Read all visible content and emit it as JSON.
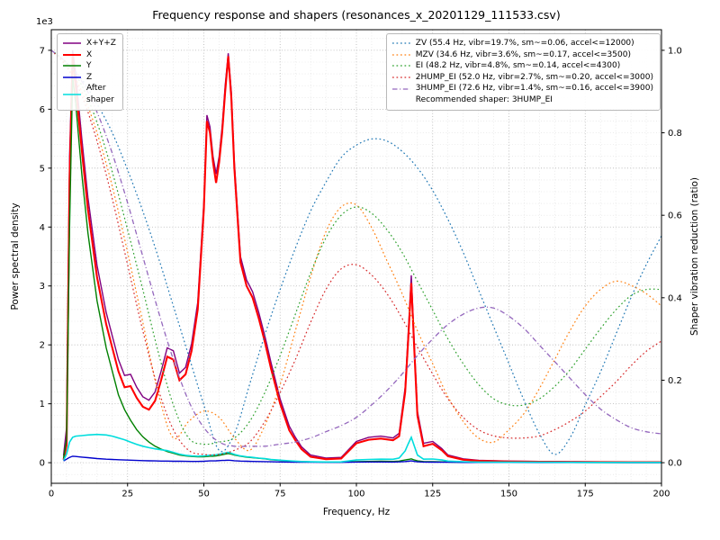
{
  "chart_data": {
    "type": "line",
    "title": "Frequency response and shapers (resonances_x_20201129_111533.csv)",
    "xlabel": "Frequency, Hz",
    "ylabel_left": "Power spectral density",
    "ylabel_right": "Shaper vibration reduction (ratio)",
    "xlim": [
      0,
      200
    ],
    "ylim_left": [
      -350,
      7350
    ],
    "ylim_right": [
      -0.05,
      1.05
    ],
    "grid": "both-major-and-minor",
    "recommended_shaper": "3HUMP_EI",
    "axes": {
      "x": {
        "ticks": [
          {
            "v": 0,
            "label": "0"
          },
          {
            "v": 25,
            "label": "25"
          },
          {
            "v": 50,
            "label": "50"
          },
          {
            "v": 75,
            "label": "75"
          },
          {
            "v": 100,
            "label": "100"
          },
          {
            "v": 125,
            "label": "125"
          },
          {
            "v": 150,
            "label": "150"
          },
          {
            "v": 175,
            "label": "175"
          },
          {
            "v": 200,
            "label": "200"
          }
        ],
        "minor_step": 5
      },
      "left": {
        "offset_label": "1e3",
        "ticks": [
          {
            "v": 0,
            "label": "0"
          },
          {
            "v": 1000,
            "label": "1"
          },
          {
            "v": 2000,
            "label": "2"
          },
          {
            "v": 3000,
            "label": "3"
          },
          {
            "v": 4000,
            "label": "4"
          },
          {
            "v": 5000,
            "label": "5"
          },
          {
            "v": 6000,
            "label": "6"
          },
          {
            "v": 7000,
            "label": "7"
          }
        ],
        "minor_step": 200
      },
      "right": {
        "ticks": [
          {
            "v": 0,
            "label": "0.0"
          },
          {
            "v": 0.2,
            "label": "0.2"
          },
          {
            "v": 0.4,
            "label": "0.4"
          },
          {
            "v": 0.6,
            "label": "0.6"
          },
          {
            "v": 0.8,
            "label": "0.8"
          },
          {
            "v": 1,
            "label": "1.0"
          }
        ]
      }
    },
    "x_psd": [
      4,
      5,
      6,
      7,
      8,
      10,
      12,
      15,
      18,
      20,
      22,
      24,
      26,
      28,
      30,
      32,
      34,
      36,
      38,
      40,
      42,
      44,
      46,
      48,
      50,
      51,
      52,
      53,
      54,
      55,
      56,
      57,
      58,
      59,
      60,
      62,
      64,
      66,
      68,
      70,
      72,
      75,
      78,
      80,
      82,
      85,
      90,
      95,
      100,
      104,
      108,
      112,
      114,
      116,
      117,
      118,
      119,
      120,
      122,
      125,
      128,
      130,
      135,
      140,
      150,
      160,
      170,
      180,
      190,
      200
    ],
    "psd_series": [
      {
        "name": "X+Y+Z",
        "color": "#800080",
        "dash": "solid",
        "width": 1.4,
        "vals": [
          120,
          600,
          5200,
          7000,
          6600,
          5500,
          4500,
          3350,
          2550,
          2150,
          1750,
          1480,
          1500,
          1280,
          1120,
          1060,
          1200,
          1550,
          1950,
          1900,
          1520,
          1620,
          2020,
          2720,
          4420,
          5900,
          5700,
          5200,
          4900,
          5200,
          5700,
          6400,
          6950,
          6300,
          5100,
          3500,
          3100,
          2900,
          2550,
          2150,
          1700,
          1080,
          620,
          430,
          270,
          130,
          80,
          90,
          360,
          430,
          450,
          420,
          500,
          1280,
          2200,
          3180,
          2000,
          870,
          330,
          360,
          240,
          130,
          65,
          40,
          28,
          22,
          16,
          13,
          10,
          10
        ]
      },
      {
        "name": "X",
        "color": "#ff0000",
        "dash": "solid",
        "width": 2.1,
        "vals": [
          50,
          300,
          4800,
          6900,
          6400,
          5300,
          4300,
          3150,
          2350,
          1950,
          1550,
          1280,
          1300,
          1100,
          950,
          900,
          1050,
          1400,
          1800,
          1750,
          1400,
          1500,
          1900,
          2600,
          4300,
          5800,
          5600,
          5100,
          4750,
          5100,
          5600,
          6300,
          6900,
          6200,
          5000,
          3400,
          3000,
          2800,
          2450,
          2050,
          1600,
          1000,
          550,
          380,
          230,
          100,
          60,
          70,
          330,
          390,
          410,
          380,
          450,
          1200,
          2100,
          3050,
          1900,
          800,
          280,
          320,
          210,
          110,
          50,
          30,
          20,
          15,
          12,
          10,
          8,
          8
        ]
      },
      {
        "name": "Y",
        "color": "#008000",
        "dash": "solid",
        "width": 1.4,
        "vals": [
          80,
          400,
          4000,
          6550,
          6100,
          4900,
          3900,
          2750,
          1950,
          1550,
          1150,
          900,
          720,
          560,
          440,
          350,
          280,
          230,
          190,
          160,
          130,
          115,
          105,
          100,
          100,
          105,
          110,
          110,
          115,
          125,
          135,
          145,
          155,
          145,
          130,
          110,
          95,
          85,
          75,
          65,
          50,
          38,
          28,
          22,
          18,
          14,
          10,
          10,
          18,
          22,
          24,
          22,
          28,
          45,
          55,
          65,
          45,
          30,
          20,
          16,
          13,
          10,
          8,
          6,
          5,
          4,
          4,
          3,
          3,
          3
        ]
      },
      {
        "name": "Z",
        "color": "#0000cd",
        "dash": "solid",
        "width": 1.4,
        "vals": [
          30,
          60,
          90,
          110,
          105,
          95,
          85,
          70,
          60,
          55,
          50,
          45,
          42,
          38,
          35,
          32,
          30,
          28,
          27,
          25,
          24,
          23,
          22,
          22,
          25,
          28,
          30,
          30,
          32,
          35,
          38,
          40,
          42,
          38,
          33,
          28,
          25,
          22,
          20,
          18,
          15,
          12,
          10,
          9,
          8,
          7,
          6,
          6,
          10,
          12,
          12,
          11,
          13,
          20,
          25,
          30,
          22,
          15,
          10,
          9,
          8,
          7,
          5,
          4,
          4,
          3,
          3,
          3,
          2,
          2
        ]
      },
      {
        "name": "After shaper",
        "color": "#00dddd",
        "dash": "solid",
        "width": 1.6,
        "vals": [
          40,
          150,
          350,
          430,
          450,
          460,
          470,
          480,
          470,
          450,
          420,
          390,
          350,
          310,
          280,
          255,
          235,
          220,
          205,
          175,
          145,
          125,
          115,
          110,
          115,
          120,
          125,
          130,
          135,
          145,
          155,
          165,
          175,
          160,
          140,
          115,
          100,
          90,
          78,
          68,
          55,
          42,
          32,
          26,
          20,
          15,
          12,
          14,
          45,
          55,
          60,
          58,
          80,
          200,
          320,
          430,
          280,
          130,
          60,
          62,
          45,
          28,
          16,
          10,
          8,
          7,
          6,
          5,
          5,
          5
        ]
      }
    ],
    "x_shapers": [
      0,
      5,
      10,
      15,
      20,
      25,
      30,
      35,
      40,
      45,
      50,
      55,
      60,
      65,
      70,
      75,
      80,
      85,
      90,
      95,
      100,
      105,
      110,
      115,
      120,
      125,
      130,
      135,
      140,
      145,
      150,
      155,
      160,
      165,
      170,
      175,
      180,
      185,
      190,
      195,
      200
    ],
    "shaper_series": [
      {
        "name": "ZV",
        "color": "#1f77b4",
        "dash": "dotted",
        "width": 1.2,
        "vals": [
          1.0,
          0.97,
          0.93,
          0.87,
          0.8,
          0.71,
          0.61,
          0.5,
          0.38,
          0.26,
          0.14,
          0.03,
          0.07,
          0.19,
          0.31,
          0.42,
          0.52,
          0.61,
          0.68,
          0.74,
          0.77,
          0.785,
          0.78,
          0.755,
          0.715,
          0.66,
          0.59,
          0.51,
          0.42,
          0.33,
          0.24,
          0.15,
          0.07,
          0.02,
          0.06,
          0.14,
          0.22,
          0.31,
          0.4,
          0.48,
          0.55
        ]
      },
      {
        "name": "MZV",
        "color": "#ff7f0e",
        "dash": "dotted",
        "width": 1.2,
        "vals": [
          1.0,
          0.965,
          0.9,
          0.8,
          0.67,
          0.51,
          0.34,
          0.17,
          0.06,
          0.1,
          0.125,
          0.11,
          0.06,
          0.03,
          0.09,
          0.19,
          0.32,
          0.45,
          0.56,
          0.62,
          0.625,
          0.57,
          0.49,
          0.41,
          0.32,
          0.24,
          0.16,
          0.1,
          0.06,
          0.05,
          0.08,
          0.12,
          0.18,
          0.25,
          0.32,
          0.38,
          0.42,
          0.44,
          0.43,
          0.41,
          0.38
        ]
      },
      {
        "name": "EI",
        "color": "#2ca02c",
        "dash": "dotted",
        "width": 1.2,
        "vals": [
          1.0,
          0.97,
          0.915,
          0.825,
          0.705,
          0.565,
          0.42,
          0.27,
          0.14,
          0.06,
          0.045,
          0.05,
          0.06,
          0.1,
          0.17,
          0.26,
          0.36,
          0.46,
          0.545,
          0.6,
          0.62,
          0.605,
          0.565,
          0.51,
          0.44,
          0.37,
          0.3,
          0.24,
          0.19,
          0.155,
          0.14,
          0.14,
          0.155,
          0.185,
          0.225,
          0.275,
          0.325,
          0.37,
          0.405,
          0.42,
          0.42
        ]
      },
      {
        "name": "2HUMP_EI",
        "color": "#d62728",
        "dash": "dotted",
        "width": 1.2,
        "vals": [
          1.0,
          0.96,
          0.89,
          0.78,
          0.64,
          0.48,
          0.32,
          0.18,
          0.08,
          0.03,
          0.02,
          0.02,
          0.03,
          0.05,
          0.1,
          0.17,
          0.25,
          0.34,
          0.42,
          0.47,
          0.48,
          0.455,
          0.41,
          0.35,
          0.28,
          0.215,
          0.155,
          0.11,
          0.08,
          0.065,
          0.06,
          0.06,
          0.065,
          0.08,
          0.1,
          0.125,
          0.16,
          0.195,
          0.235,
          0.27,
          0.295
        ]
      },
      {
        "name": "3HUMP_EI",
        "color": "#9467bd",
        "dash": "dashdot",
        "width": 1.3,
        "vals": [
          1.0,
          0.97,
          0.925,
          0.85,
          0.75,
          0.63,
          0.5,
          0.37,
          0.25,
          0.15,
          0.085,
          0.05,
          0.04,
          0.04,
          0.04,
          0.045,
          0.05,
          0.06,
          0.075,
          0.09,
          0.11,
          0.14,
          0.175,
          0.215,
          0.26,
          0.3,
          0.335,
          0.36,
          0.375,
          0.375,
          0.355,
          0.325,
          0.285,
          0.245,
          0.205,
          0.165,
          0.13,
          0.105,
          0.085,
          0.075,
          0.07
        ]
      }
    ]
  },
  "legend_psd": {
    "items": [
      {
        "label": "X+Y+Z",
        "color": "#800080",
        "dash": "solid",
        "width": 1.6
      },
      {
        "label": "X",
        "color": "#ff0000",
        "dash": "solid",
        "width": 2.1
      },
      {
        "label": "Y",
        "color": "#008000",
        "dash": "solid",
        "width": 1.6
      },
      {
        "label": "Z",
        "color": "#0000cd",
        "dash": "solid",
        "width": 1.6
      },
      {
        "label": "After\nshaper",
        "color": "#00dddd",
        "dash": "solid",
        "width": 1.6
      }
    ]
  },
  "legend_shapers": {
    "items": [
      {
        "label": "ZV (55.4 Hz, vibr=19.7%, sm~=0.06, accel<=12000)",
        "color": "#1f77b4",
        "dash": "dotted",
        "width": 1.3
      },
      {
        "label": "MZV (34.6 Hz, vibr=3.6%, sm~=0.17, accel<=3500)",
        "color": "#ff7f0e",
        "dash": "dotted",
        "width": 1.3
      },
      {
        "label": "EI (48.2 Hz, vibr=4.8%, sm~=0.14, accel<=4300)",
        "color": "#2ca02c",
        "dash": "dotted",
        "width": 1.3
      },
      {
        "label": "2HUMP_EI (52.0 Hz, vibr=2.7%, sm~=0.20, accel<=3000)",
        "color": "#d62728",
        "dash": "dotted",
        "width": 1.3
      },
      {
        "label": "3HUMP_EI (72.6 Hz, vibr=1.4%, sm~=0.16, accel<=3900)",
        "color": "#9467bd",
        "dash": "dashdot",
        "width": 1.3
      },
      {
        "label": "Recommended shaper: 3HUMP_EI",
        "color": null,
        "dash": "none",
        "width": 0
      }
    ]
  }
}
